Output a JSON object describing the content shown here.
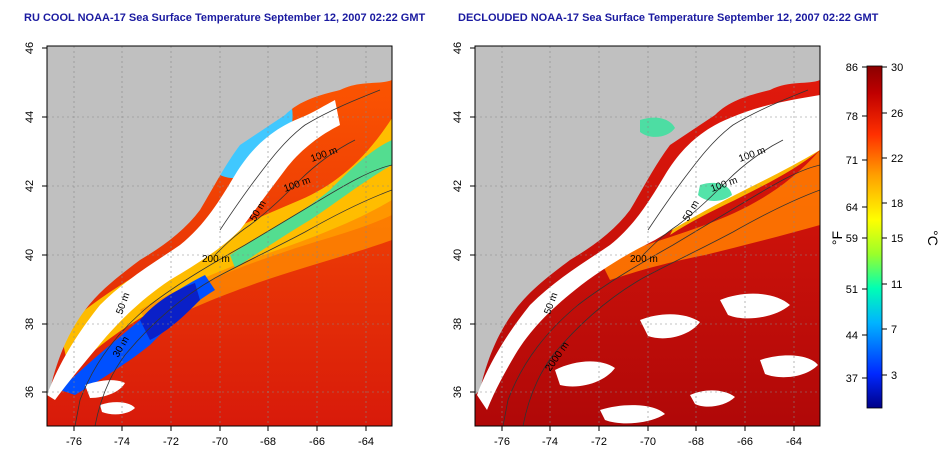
{
  "panels": [
    {
      "id": "left",
      "title": "RU COOL NOAA-17 Sea Surface Temperature September 12, 2007 02:22 GMT",
      "isobaths": [
        {
          "label": "100 m"
        },
        {
          "label": "100 m"
        },
        {
          "label": "50 m"
        },
        {
          "label": "200 m"
        },
        {
          "label": "50 m"
        },
        {
          "label": "30 m"
        }
      ]
    },
    {
      "id": "right",
      "title": "DECLOUDED NOAA-17 Sea Surface Temperature September 12, 2007 02:22 GMT",
      "isobaths": [
        {
          "label": "100 m"
        },
        {
          "label": "100 m"
        },
        {
          "label": "50 m"
        },
        {
          "label": "200 m"
        },
        {
          "label": "50 m"
        },
        {
          "label": "2000 m"
        }
      ]
    }
  ],
  "axes": {
    "lon_ticks": [
      "-76",
      "-74",
      "-72",
      "-70",
      "-68",
      "-66",
      "-64"
    ],
    "lat_ticks": [
      "46",
      "44",
      "42",
      "40",
      "38",
      "36"
    ]
  },
  "colorbar": {
    "fahrenheit_ticks": [
      "86",
      "78",
      "71",
      "64",
      "59",
      "51",
      "44",
      "37"
    ],
    "celsius_ticks": [
      "30",
      "26",
      "22",
      "18",
      "15",
      "11",
      "7",
      "3"
    ],
    "fahrenheit_unit": "°F",
    "celsius_unit": "°C",
    "gradient": [
      "#000088",
      "#0028ff",
      "#00b4ff",
      "#00ffb4",
      "#9aff2a",
      "#ffff00",
      "#ffa000",
      "#ff3000",
      "#c00000",
      "#8a0000"
    ]
  },
  "colors": {
    "land": "#c0c0c0",
    "cloud": "#ffffff",
    "title": "#1a1aa0"
  }
}
